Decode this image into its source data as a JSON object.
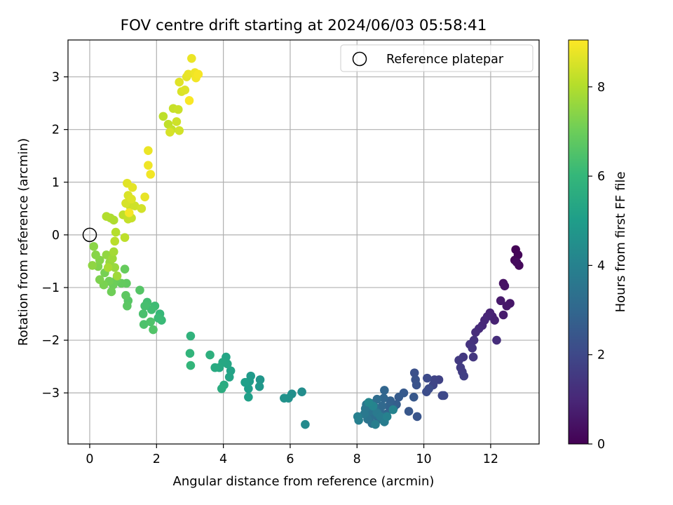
{
  "chart_data": {
    "type": "scatter",
    "title": "FOV centre drift starting at 2024/06/03 05:58:41",
    "xlabel": "Angular distance from reference (arcmin)",
    "ylabel": "Rotation from reference (arcmin)",
    "xlim": [
      -0.65,
      13.45
    ],
    "ylim": [
      -3.97,
      3.7
    ],
    "xticks": [
      0,
      2,
      4,
      6,
      8,
      10,
      12
    ],
    "yticks": [
      -3,
      -2,
      -1,
      0,
      1,
      2,
      3
    ],
    "grid": true,
    "legend": {
      "position": "top-right",
      "entries": [
        "Reference platepar"
      ]
    },
    "reference_point": {
      "x": 0,
      "y": 0
    },
    "colorbar": {
      "label": "Hours from first FF file",
      "min": 0,
      "max": 9.05,
      "ticks": [
        0,
        2,
        4,
        6,
        8
      ],
      "colormap": "viridis"
    },
    "colormap_stops": [
      "#440154",
      "#482878",
      "#3e4989",
      "#31688e",
      "#26828e",
      "#1f9e89",
      "#35b779",
      "#6ece58",
      "#b5de2b",
      "#fde725"
    ],
    "marker_color_reference": "#000000",
    "points": [
      [
        12.75,
        -0.28,
        0.05
      ],
      [
        12.82,
        -0.38,
        0.1
      ],
      [
        12.72,
        -0.48,
        0.15
      ],
      [
        12.85,
        -0.58,
        0.2
      ],
      [
        12.78,
        -0.52,
        0.25
      ],
      [
        12.38,
        -0.92,
        0.4
      ],
      [
        12.42,
        -0.97,
        0.45
      ],
      [
        12.58,
        -1.3,
        0.55
      ],
      [
        12.48,
        -1.35,
        0.6
      ],
      [
        12.3,
        -1.25,
        0.65
      ],
      [
        12.38,
        -1.52,
        0.7
      ],
      [
        12.05,
        -1.55,
        0.8
      ],
      [
        12.12,
        -1.62,
        0.85
      ],
      [
        11.98,
        -1.48,
        0.9
      ],
      [
        11.9,
        -1.55,
        0.95
      ],
      [
        11.82,
        -1.62,
        1.0
      ],
      [
        11.75,
        -1.72,
        1.05
      ],
      [
        11.65,
        -1.78,
        1.1
      ],
      [
        11.55,
        -1.85,
        1.15
      ],
      [
        12.18,
        -2.0,
        1.2
      ],
      [
        11.5,
        -2.0,
        1.3
      ],
      [
        11.38,
        -2.08,
        1.35
      ],
      [
        11.45,
        -2.15,
        1.4
      ],
      [
        11.48,
        -2.32,
        1.45
      ],
      [
        11.18,
        -2.32,
        1.5
      ],
      [
        11.05,
        -2.38,
        1.55
      ],
      [
        11.1,
        -2.52,
        1.6
      ],
      [
        11.15,
        -2.6,
        1.65
      ],
      [
        11.2,
        -2.68,
        1.7
      ],
      [
        10.45,
        -2.75,
        1.8
      ],
      [
        10.32,
        -2.75,
        1.85
      ],
      [
        10.28,
        -2.85,
        1.9
      ],
      [
        10.55,
        -3.05,
        1.95
      ],
      [
        10.6,
        -3.05,
        2.0
      ],
      [
        10.1,
        -2.72,
        2.05
      ],
      [
        10.15,
        -2.92,
        2.1
      ],
      [
        10.08,
        -2.98,
        2.15
      ],
      [
        9.72,
        -2.62,
        2.25
      ],
      [
        9.75,
        -2.75,
        2.3
      ],
      [
        9.78,
        -2.85,
        2.35
      ],
      [
        9.8,
        -3.45,
        2.4
      ],
      [
        9.55,
        -3.35,
        2.45
      ],
      [
        9.7,
        -3.08,
        2.5
      ],
      [
        9.4,
        -3.0,
        2.55
      ],
      [
        9.25,
        -3.08,
        2.6
      ],
      [
        9.18,
        -3.22,
        2.7
      ],
      [
        9.1,
        -3.28,
        2.75
      ],
      [
        9.0,
        -3.15,
        2.8
      ],
      [
        8.95,
        -3.25,
        2.85
      ],
      [
        8.88,
        -3.4,
        2.9
      ],
      [
        8.82,
        -2.95,
        2.95
      ],
      [
        8.8,
        -3.1,
        3.0
      ],
      [
        8.75,
        -3.25,
        3.05
      ],
      [
        8.7,
        -3.38,
        3.1
      ],
      [
        8.65,
        -3.5,
        3.15
      ],
      [
        8.6,
        -3.12,
        3.2
      ],
      [
        8.55,
        -3.28,
        3.25
      ],
      [
        8.5,
        -3.42,
        3.3
      ],
      [
        8.45,
        -3.58,
        3.35
      ],
      [
        8.42,
        -3.2,
        3.4
      ],
      [
        8.38,
        -3.35,
        3.45
      ],
      [
        8.32,
        -3.5,
        3.5
      ],
      [
        8.28,
        -3.22,
        3.55
      ],
      [
        8.25,
        -3.3,
        3.6
      ],
      [
        8.22,
        -3.4,
        3.65
      ],
      [
        8.6,
        -3.38,
        3.7
      ],
      [
        8.7,
        -3.45,
        3.75
      ],
      [
        8.82,
        -3.55,
        3.8
      ],
      [
        8.55,
        -3.6,
        3.85
      ],
      [
        8.05,
        -3.52,
        3.9
      ],
      [
        8.02,
        -3.45,
        3.95
      ],
      [
        8.9,
        -3.45,
        4.0
      ],
      [
        9.08,
        -3.32,
        4.05
      ],
      [
        8.48,
        -3.25,
        4.1
      ],
      [
        8.35,
        -3.18,
        4.15
      ],
      [
        6.45,
        -3.6,
        4.3
      ],
      [
        6.35,
        -2.98,
        4.4
      ],
      [
        6.05,
        -3.02,
        4.5
      ],
      [
        5.95,
        -3.1,
        4.55
      ],
      [
        5.82,
        -3.1,
        4.6
      ],
      [
        5.1,
        -2.75,
        4.75
      ],
      [
        5.08,
        -2.88,
        4.8
      ],
      [
        4.82,
        -2.68,
        4.9
      ],
      [
        4.78,
        -2.78,
        4.95
      ],
      [
        4.75,
        -2.92,
        5.0
      ],
      [
        4.65,
        -2.8,
        5.05
      ],
      [
        4.75,
        -3.08,
        5.1
      ],
      [
        4.22,
        -2.58,
        5.2
      ],
      [
        4.18,
        -2.7,
        5.25
      ],
      [
        4.08,
        -2.32,
        5.3
      ],
      [
        4.12,
        -2.45,
        5.35
      ],
      [
        3.98,
        -2.42,
        5.4
      ],
      [
        3.88,
        -2.52,
        5.45
      ],
      [
        3.75,
        -2.52,
        5.5
      ],
      [
        4.02,
        -2.85,
        5.55
      ],
      [
        3.95,
        -2.92,
        5.6
      ],
      [
        3.6,
        -2.28,
        5.7
      ],
      [
        3.02,
        -1.92,
        5.85
      ],
      [
        3.0,
        -2.25,
        5.9
      ],
      [
        3.02,
        -2.48,
        5.95
      ],
      [
        2.1,
        -1.5,
        6.05
      ],
      [
        2.15,
        -1.62,
        6.1
      ],
      [
        2.05,
        -1.58,
        6.15
      ],
      [
        1.95,
        -1.35,
        6.2
      ],
      [
        1.85,
        -1.42,
        6.25
      ],
      [
        1.72,
        -1.28,
        6.3
      ],
      [
        1.65,
        -1.35,
        6.35
      ],
      [
        1.6,
        -1.5,
        6.4
      ],
      [
        1.62,
        -1.7,
        6.45
      ],
      [
        1.82,
        -1.65,
        6.5
      ],
      [
        1.9,
        -1.8,
        6.55
      ],
      [
        1.5,
        -1.05,
        6.6
      ],
      [
        1.15,
        -1.25,
        6.65
      ],
      [
        1.12,
        -1.35,
        6.7
      ],
      [
        1.08,
        -1.15,
        6.75
      ],
      [
        1.1,
        -0.92,
        6.8
      ],
      [
        0.95,
        -0.92,
        6.85
      ],
      [
        1.05,
        -0.65,
        6.9
      ],
      [
        0.8,
        -0.85,
        6.95
      ],
      [
        0.7,
        -0.95,
        7.0
      ],
      [
        0.65,
        -1.08,
        7.05
      ],
      [
        0.58,
        -0.88,
        7.1
      ],
      [
        0.45,
        -0.72,
        7.15
      ],
      [
        0.42,
        -0.95,
        7.2
      ],
      [
        0.3,
        -0.85,
        7.25
      ],
      [
        0.25,
        -0.6,
        7.3
      ],
      [
        0.3,
        -0.48,
        7.35
      ],
      [
        0.18,
        -0.38,
        7.4
      ],
      [
        0.12,
        -0.22,
        7.45
      ],
      [
        0.08,
        -0.58,
        7.5
      ],
      [
        0.5,
        -0.38,
        7.55
      ],
      [
        0.6,
        -0.52,
        7.6
      ],
      [
        0.75,
        -0.62,
        7.65
      ],
      [
        0.68,
        -0.45,
        7.7
      ],
      [
        0.82,
        -0.78,
        7.75
      ],
      [
        0.72,
        -0.32,
        7.8
      ],
      [
        0.55,
        -0.62,
        7.85
      ],
      [
        0.62,
        0.32,
        7.9
      ],
      [
        0.72,
        0.28,
        7.95
      ],
      [
        0.5,
        0.35,
        8.0
      ],
      [
        0.78,
        0.05,
        8.05
      ],
      [
        0.75,
        -0.12,
        8.1
      ],
      [
        1.05,
        -0.05,
        8.15
      ],
      [
        1.0,
        0.38,
        8.2
      ],
      [
        1.15,
        0.3,
        8.25
      ],
      [
        1.25,
        0.32,
        8.3
      ],
      [
        1.2,
        0.55,
        8.35
      ],
      [
        1.35,
        0.55,
        8.4
      ],
      [
        1.55,
        0.5,
        8.45
      ],
      [
        1.08,
        0.6,
        8.5
      ],
      [
        1.15,
        0.75,
        8.55
      ],
      [
        1.25,
        0.68,
        8.6
      ],
      [
        1.12,
        0.98,
        8.65
      ],
      [
        1.28,
        0.9,
        8.7
      ],
      [
        1.65,
        0.72,
        8.75
      ],
      [
        1.75,
        1.6,
        8.8
      ],
      [
        1.75,
        1.32,
        8.85
      ],
      [
        1.82,
        1.15,
        8.9
      ],
      [
        1.18,
        0.42,
        8.95
      ],
      [
        2.2,
        2.25,
        8.15
      ],
      [
        2.35,
        2.1,
        8.2
      ],
      [
        2.45,
        2.0,
        8.25
      ],
      [
        2.5,
        2.4,
        8.3
      ],
      [
        2.65,
        2.38,
        8.35
      ],
      [
        2.6,
        2.15,
        8.4
      ],
      [
        2.68,
        1.98,
        8.45
      ],
      [
        2.4,
        1.95,
        8.5
      ],
      [
        2.75,
        2.72,
        8.55
      ],
      [
        2.85,
        2.75,
        8.6
      ],
      [
        2.68,
        2.9,
        8.65
      ],
      [
        2.9,
        3.0,
        8.7
      ],
      [
        2.95,
        3.05,
        8.75
      ],
      [
        3.05,
        3.35,
        8.8
      ],
      [
        3.15,
        3.08,
        8.85
      ],
      [
        3.18,
        2.98,
        8.9
      ],
      [
        3.25,
        3.05,
        8.95
      ],
      [
        2.98,
        2.55,
        9.0
      ]
    ]
  }
}
